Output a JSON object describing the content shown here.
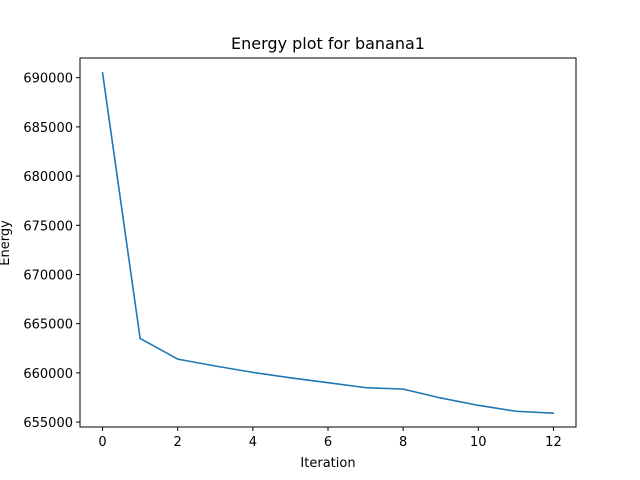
{
  "chart_data": {
    "type": "line",
    "title": "Energy plot for banana1",
    "xlabel": "Iteration",
    "ylabel": "Energy",
    "xlim": [
      -0.6,
      12.6
    ],
    "ylim": [
      654500,
      692000
    ],
    "xticks": [
      0,
      2,
      4,
      6,
      8,
      10,
      12
    ],
    "yticks": [
      655000,
      660000,
      665000,
      670000,
      675000,
      680000,
      685000,
      690000
    ],
    "grid": false,
    "series": [
      {
        "name": "energy",
        "color": "#1f77b4",
        "x": [
          0,
          1,
          2,
          3,
          4,
          5,
          6,
          7,
          8,
          9,
          10,
          11,
          12
        ],
        "y": [
          690500,
          663500,
          661400,
          660700,
          660050,
          659500,
          659000,
          658500,
          658350,
          657450,
          656700,
          656100,
          655900
        ]
      }
    ]
  }
}
